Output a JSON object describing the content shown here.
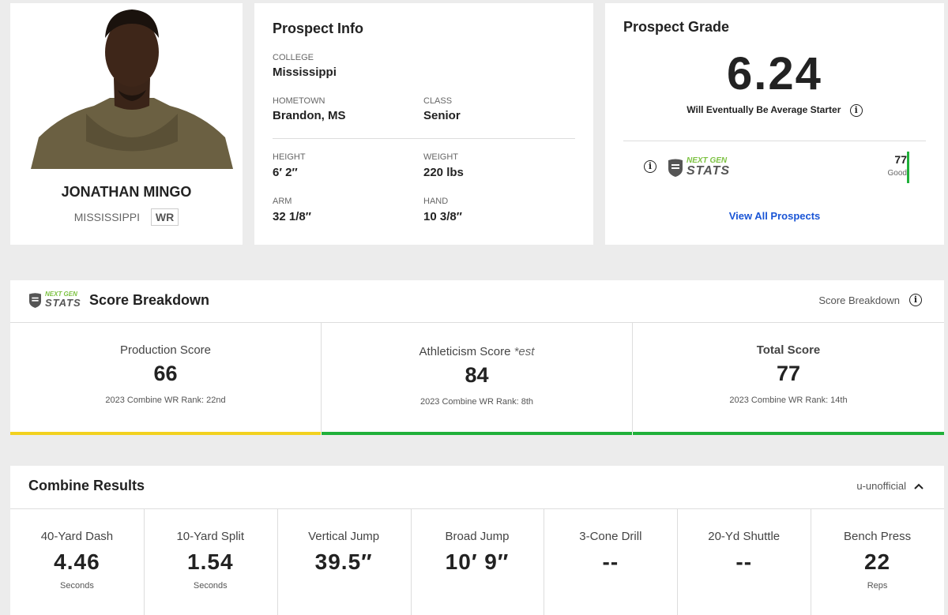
{
  "player": {
    "name": "JONATHAN MINGO",
    "school": "MISSISSIPPI",
    "position": "WR"
  },
  "prospect_info": {
    "title": "Prospect Info",
    "college_label": "COLLEGE",
    "college": "Mississippi",
    "hometown_label": "HOMETOWN",
    "hometown": "Brandon, MS",
    "class_label": "CLASS",
    "class": "Senior",
    "height_label": "HEIGHT",
    "height": "6′ 2″",
    "weight_label": "WEIGHT",
    "weight": "220 lbs",
    "arm_label": "ARM",
    "arm": "32 1/8″",
    "hand_label": "HAND",
    "hand": "10 3/8″"
  },
  "grade": {
    "title": "Prospect Grade",
    "value": "6.24",
    "description": "Will Eventually Be Average Starter",
    "ngs_logo_top": "NEXT GEN",
    "ngs_logo_bottom": "STATS",
    "ngs_score": "77",
    "ngs_score_label": "Good",
    "view_all": "View All Prospects"
  },
  "breakdown": {
    "logo_top": "NEXT GEN",
    "logo_bottom": "STATS",
    "title": "Score Breakdown",
    "right_label": "Score Breakdown",
    "scores": [
      {
        "label": "Production Score",
        "est": "",
        "value": "66",
        "rank": "2023 Combine WR Rank: 22nd",
        "color": "#f2d11f"
      },
      {
        "label": "Athleticism Score",
        "est": "*est",
        "value": "84",
        "rank": "2023 Combine WR Rank: 8th",
        "color": "#20b03a"
      },
      {
        "label": "Total Score",
        "est": "",
        "value": "77",
        "rank": "2023 Combine WR Rank: 14th",
        "color": "#20b03a"
      }
    ]
  },
  "combine": {
    "title": "Combine Results",
    "toggle_label": "u-unofficial",
    "drills": [
      {
        "label": "40-Yard Dash",
        "value": "4.46",
        "unit": "Seconds"
      },
      {
        "label": "10-Yard Split",
        "value": "1.54",
        "unit": "Seconds"
      },
      {
        "label": "Vertical Jump",
        "value": "39.5″",
        "unit": ""
      },
      {
        "label": "Broad Jump",
        "value": "10′ 9″",
        "unit": ""
      },
      {
        "label": "3-Cone Drill",
        "value": "--",
        "unit": ""
      },
      {
        "label": "20-Yd Shuttle",
        "value": "--",
        "unit": ""
      },
      {
        "label": "Bench Press",
        "value": "22",
        "unit": "Reps"
      }
    ]
  }
}
